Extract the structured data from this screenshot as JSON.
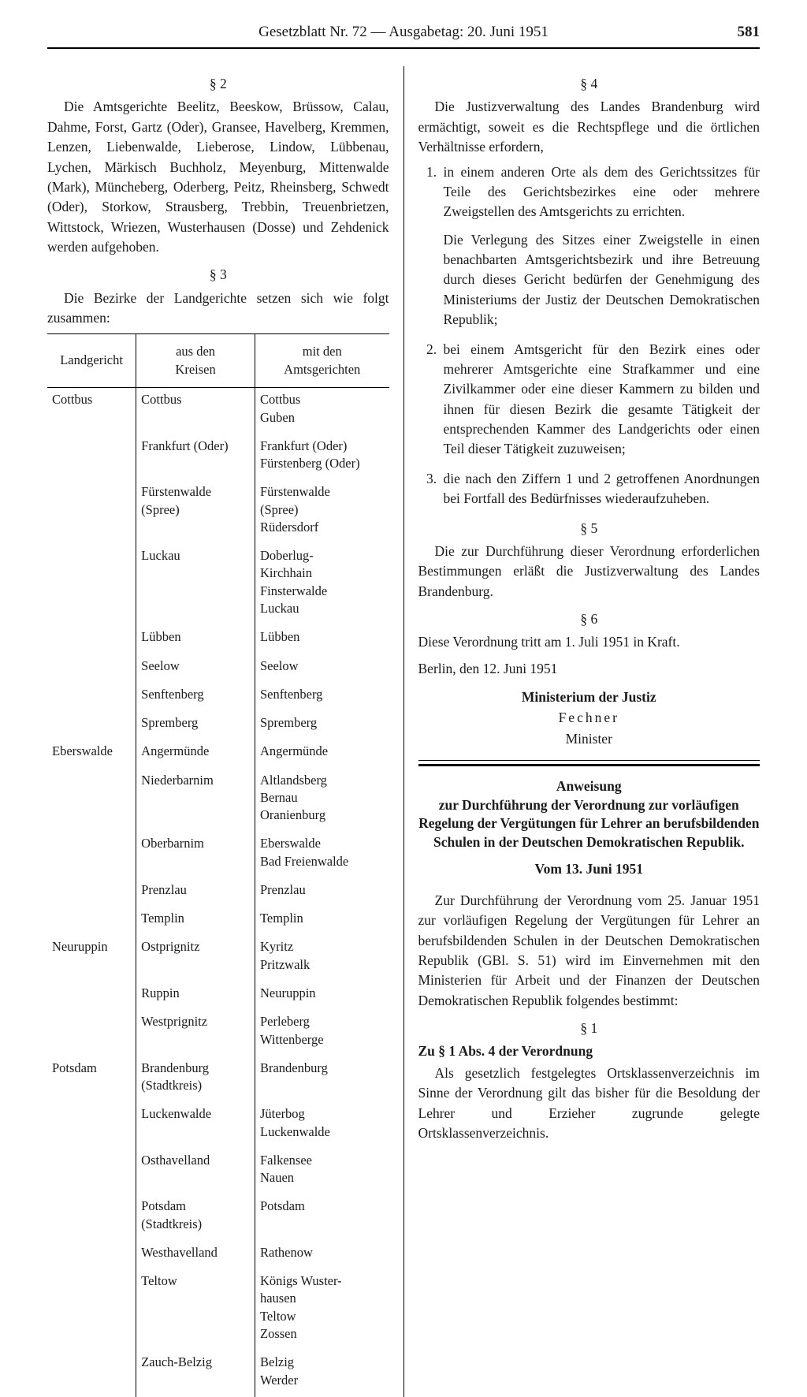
{
  "header": {
    "title": "Gesetzblatt Nr. 72 — Ausgabetag: 20. Juni 1951",
    "page": "581"
  },
  "left": {
    "s2": {
      "head": "§ 2",
      "text": "Die Amtsgerichte Beelitz, Beeskow, Brüssow, Calau, Dahme, Forst, Gartz (Oder), Gransee, Havelberg, Kremmen, Lenzen, Liebenwalde, Lieberose, Lindow, Lübbenau, Lychen, Märkisch Buchholz, Meyenburg, Mittenwalde (Mark), Müncheberg, Oderberg, Peitz, Rheinsberg, Schwedt (Oder), Storkow, Strausberg, Trebbin, Treuenbrietzen, Wittstock, Wriezen, Wusterhausen (Dosse) und Zehdenick werden aufgehoben."
    },
    "s3": {
      "head": "§ 3",
      "text": "Die Bezirke der Landgerichte setzen sich wie folgt zusammen:"
    },
    "table": {
      "headers": {
        "c1": "Landgericht",
        "c2": "aus den\nKreisen",
        "c3": "mit den\nAmtsgerichten"
      },
      "groups": [
        {
          "lg": "Cottbus",
          "rows": [
            {
              "k": "Cottbus",
              "a": "Cottbus\nGuben"
            },
            {
              "k": "Frankfurt (Oder)",
              "a": "Frankfurt (Oder)\nFürstenberg (Oder)"
            },
            {
              "k": "Fürstenwalde\n(Spree)",
              "a": "Fürstenwalde\n(Spree)\nRüdersdorf"
            },
            {
              "k": "Luckau",
              "a": "Doberlug-\nKirchhain\nFinsterwalde\nLuckau"
            },
            {
              "k": "Lübben",
              "a": "Lübben"
            },
            {
              "k": "Seelow",
              "a": "Seelow"
            },
            {
              "k": "Senftenberg",
              "a": "Senftenberg"
            },
            {
              "k": "Spremberg",
              "a": "Spremberg"
            }
          ]
        },
        {
          "lg": "Eberswalde",
          "rows": [
            {
              "k": "Angermünde",
              "a": "Angermünde"
            },
            {
              "k": "Niederbarnim",
              "a": "Altlandsberg\nBernau\nOranienburg"
            },
            {
              "k": "Oberbarnim",
              "a": "Eberswalde\nBad Freienwalde"
            },
            {
              "k": "Prenzlau",
              "a": "Prenzlau"
            },
            {
              "k": "Templin",
              "a": "Templin"
            }
          ]
        },
        {
          "lg": "Neuruppin",
          "rows": [
            {
              "k": "Ostprignitz",
              "a": "Kyritz\nPritzwalk"
            },
            {
              "k": "Ruppin",
              "a": "Neuruppin"
            },
            {
              "k": "Westprignitz",
              "a": "Perleberg\nWittenberge"
            }
          ]
        },
        {
          "lg": "Potsdam",
          "rows": [
            {
              "k": "Brandenburg\n(Stadtkreis)",
              "a": "Brandenburg"
            },
            {
              "k": "Luckenwalde",
              "a": "Jüterbog\nLuckenwalde"
            },
            {
              "k": "Osthavelland",
              "a": "Falkensee\nNauen"
            },
            {
              "k": "Potsdam\n(Stadtkreis)",
              "a": "Potsdam"
            },
            {
              "k": "Westhavelland",
              "a": "Rathenow"
            },
            {
              "k": "Teltow",
              "a": "Königs Wuster-\nhausen\nTeltow\nZossen"
            },
            {
              "k": "Zauch-Belzig",
              "a": "Belzig\nWerder"
            }
          ]
        }
      ]
    }
  },
  "right": {
    "s4": {
      "head": "§ 4",
      "intro": "Die Justizverwaltung des Landes Brandenburg wird ermächtigt, soweit es die Rechtspflege und die örtlichen Verhältnisse erfordern,",
      "items": [
        {
          "main": "in einem anderen Orte als dem des Gerichtssitzes für Teile des Gerichtsbezirkes eine oder mehrere Zweigstellen des Amtsgerichts zu errichten.",
          "sub": "Die Verlegung des Sitzes einer Zweigstelle in einen benachbarten Amtsgerichtsbezirk und ihre Betreuung durch dieses Gericht bedürfen der Genehmigung des Ministeriums der Justiz der Deutschen Demokratischen Republik;"
        },
        {
          "main": "bei einem Amtsgericht für den Bezirk eines oder mehrerer Amtsgerichte eine Strafkammer und eine Zivilkammer oder eine dieser Kammern zu bilden und ihnen für diesen Bezirk die gesamte Tätigkeit der entsprechenden Kammer des Landgerichts oder einen Teil dieser Tätigkeit zuzuweisen;"
        },
        {
          "main": "die nach den Ziffern 1 und 2 getroffenen Anordnungen bei Fortfall des Bedürfnisses wiederaufzuheben."
        }
      ]
    },
    "s5": {
      "head": "§ 5",
      "text": "Die zur Durchführung dieser Verordnung erforderlichen Bestimmungen erläßt die Justizverwaltung des Landes Brandenburg."
    },
    "s6": {
      "head": "§ 6",
      "text": "Diese Verordnung tritt am 1. Juli 1951 in Kraft."
    },
    "locdate": "Berlin, den 12. Juni 1951",
    "sig": {
      "ministry": "Ministerium der Justiz",
      "name": "Fechner",
      "role": "Minister"
    },
    "anw": {
      "title1": "Anweisung",
      "title2": "zur Durchführung der Verordnung zur vorläufigen Regelung der Vergütungen für Lehrer an berufsbildenden Schulen in der Deutschen Demokratischen Republik.",
      "date": "Vom 13. Juni 1951",
      "intro": "Zur Durchführung der Verordnung vom 25. Januar 1951 zur vorläufigen Regelung der Vergütungen für Lehrer an berufsbildenden Schulen in der Deutschen Demokratischen Republik (GBl. S. 51) wird im Einvernehmen mit den Ministerien für Arbeit und der Finanzen der Deutschen Demokratischen Republik folgendes bestimmt:",
      "s1head": "§ 1",
      "s1sub": "Zu § 1 Abs. 4 der Verordnung",
      "s1text": "Als gesetzlich festgelegtes Ortsklassenverzeichnis im Sinne der Verordnung gilt das bisher für die Besoldung der Lehrer und Erzieher zugrunde gelegte Ortsklassenverzeichnis."
    }
  }
}
